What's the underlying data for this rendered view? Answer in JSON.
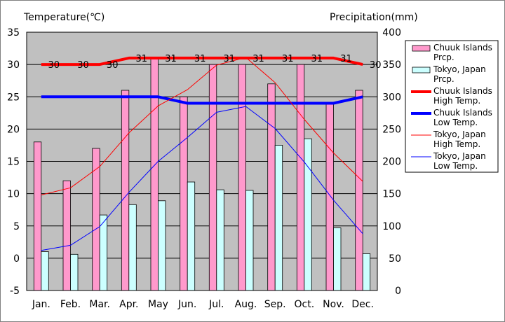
{
  "chart_data": {
    "type": "bar",
    "ylabel_left": "Temperature(℃)",
    "ylabel_right": "Precipitation(mm)",
    "categories": [
      "Jan.",
      "Feb.",
      "Mar.",
      "Apr.",
      "May",
      "Jun.",
      "Jul.",
      "Aug.",
      "Sep.",
      "Oct.",
      "Nov.",
      "Dec."
    ],
    "ylim_left": [
      -5,
      35
    ],
    "yticks_left": [
      "35",
      "30",
      "25",
      "20",
      "15",
      "10",
      "5",
      "0",
      "-5"
    ],
    "ylim_right": [
      0,
      400
    ],
    "yticks_right": [
      "400",
      "350",
      "300",
      "250",
      "200",
      "150",
      "100",
      "50",
      "0"
    ],
    "grid": true,
    "legend_position": "right",
    "series": [
      {
        "name": "Chuuk Islands Prcp.",
        "legend_lines": [
          "Chuuk Islands",
          "Prcp."
        ],
        "kind": "bar",
        "axis": "right",
        "color": "#ff99cc",
        "values": [
          230,
          170,
          220,
          310,
          360,
          300,
          350,
          350,
          320,
          350,
          290,
          310
        ]
      },
      {
        "name": "Tokyo, Japan Prcp.",
        "legend_lines": [
          "Tokyo, Japan",
          "Prcp."
        ],
        "kind": "bar",
        "axis": "right",
        "color": "#ccffff",
        "values": [
          60,
          56,
          117,
          133,
          139,
          168,
          156,
          155,
          225,
          235,
          97,
          57
        ]
      },
      {
        "name": "Chuuk Islands High Temp.",
        "legend_lines": [
          "Chuuk Islands",
          "High Temp."
        ],
        "kind": "line",
        "axis": "left",
        "color": "#ff0000",
        "width": 4,
        "values": [
          30,
          30,
          30,
          31,
          31,
          31,
          31,
          31,
          31,
          31,
          31,
          30
        ],
        "labels": [
          "30",
          "30",
          "30",
          "31",
          "31",
          "31",
          "31",
          "31",
          "31",
          "31",
          "31",
          "30"
        ]
      },
      {
        "name": "Chuuk Islands Low Temp.",
        "legend_lines": [
          "Chuuk Islands",
          "Low Temp."
        ],
        "kind": "line",
        "axis": "left",
        "color": "#0000ff",
        "width": 4,
        "values": [
          25,
          25,
          25,
          25,
          25,
          24,
          24,
          24,
          24,
          24,
          24,
          25
        ]
      },
      {
        "name": "Tokyo, Japan High Temp.",
        "legend_lines": [
          "Tokyo, Japan",
          "High Temp."
        ],
        "kind": "line",
        "axis": "left",
        "color": "#ff0000",
        "width": 1,
        "values": [
          9.8,
          10.9,
          14.2,
          19.4,
          23.6,
          26.1,
          29.9,
          31.1,
          27.2,
          21.5,
          16.3,
          11.9
        ]
      },
      {
        "name": "Tokyo, Japan Low Temp.",
        "legend_lines": [
          "Tokyo, Japan",
          "Low Temp."
        ],
        "kind": "line",
        "axis": "left",
        "color": "#0000ff",
        "width": 1,
        "values": [
          1.2,
          2.0,
          4.9,
          10.2,
          15.0,
          18.7,
          22.6,
          23.5,
          20.1,
          14.9,
          9.0,
          3.8
        ]
      }
    ]
  }
}
